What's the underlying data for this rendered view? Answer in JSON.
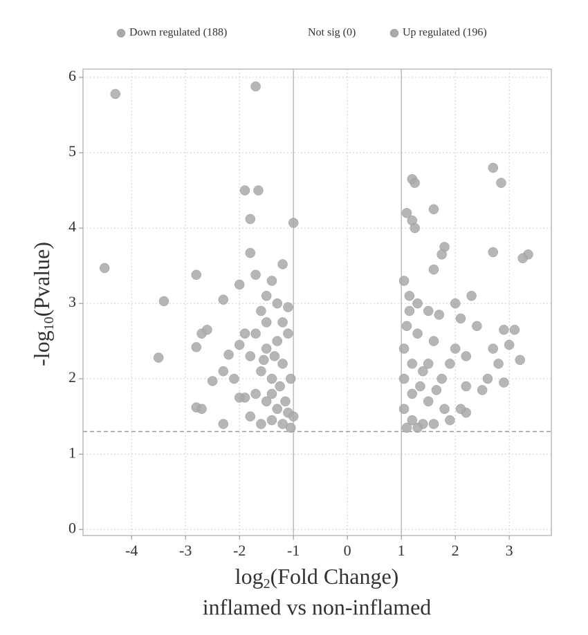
{
  "chart_data": {
    "type": "scatter",
    "series": [
      {
        "name": "Down regulated (188)",
        "color": "#a9a9a9",
        "x": [
          -4.3,
          -4.5,
          -3.4,
          -3.5,
          -2.8,
          -2.8,
          -2.7,
          -2.6,
          -2.5,
          -2.8,
          -2.7,
          -2.3,
          -2.3,
          -2.2,
          -2.3,
          -2.0,
          -1.9,
          -1.65,
          -1.7,
          -1.8,
          -1.8,
          -1.7,
          -1.0,
          -1.2,
          -1.4,
          -1.5,
          -1.3,
          -1.6,
          -1.1,
          -1.9,
          -2.0,
          -1.8,
          -1.5,
          -1.3,
          -1.1,
          -1.6,
          -1.4,
          -1.2,
          -1.05,
          -1.9,
          -2.0,
          -1.7,
          -1.5,
          -1.3,
          -1.1,
          -1.8,
          -1.6,
          -1.4,
          -1.2,
          -1.05,
          -2.1,
          -1.7,
          -1.5,
          -1.2,
          -1.4,
          -1.25,
          -1.15,
          -1.0,
          -1.35,
          -1.55
        ],
        "values": [
          5.78,
          3.47,
          3.03,
          2.28,
          3.38,
          2.42,
          2.6,
          2.65,
          1.97,
          1.62,
          1.6,
          1.4,
          2.1,
          2.32,
          3.05,
          3.25,
          4.5,
          4.5,
          5.88,
          4.12,
          3.67,
          3.38,
          4.07,
          3.52,
          3.3,
          3.1,
          3.0,
          2.9,
          2.95,
          2.6,
          2.45,
          2.3,
          2.4,
          2.5,
          2.6,
          2.1,
          2.0,
          2.2,
          2.0,
          1.75,
          1.75,
          1.8,
          1.7,
          1.6,
          1.55,
          1.5,
          1.4,
          1.45,
          1.4,
          1.35,
          2.0,
          2.6,
          2.75,
          2.75,
          1.8,
          1.9,
          1.7,
          1.5,
          2.3,
          2.25
        ]
      },
      {
        "name": "Not sig (0)",
        "color": "#ffffff",
        "x": [],
        "values": []
      },
      {
        "name": "Up regulated (196)",
        "color": "#a9a9a9",
        "x": [
          1.2,
          1.25,
          1.2,
          1.25,
          1.1,
          1.6,
          2.7,
          2.85,
          2.7,
          3.35,
          3.25,
          1.8,
          1.75,
          1.6,
          1.05,
          1.15,
          1.3,
          1.5,
          1.7,
          2.0,
          2.3,
          2.1,
          2.4,
          2.9,
          3.1,
          2.7,
          3.0,
          2.8,
          3.2,
          2.6,
          2.9,
          2.2,
          2.5,
          1.9,
          1.6,
          1.3,
          1.1,
          1.05,
          1.2,
          1.4,
          1.05,
          1.2,
          1.5,
          1.8,
          2.2,
          1.05,
          1.2,
          1.4,
          1.6,
          1.9,
          2.1,
          1.1,
          1.3,
          1.75,
          2.0,
          2.2,
          1.5,
          1.35,
          1.65,
          1.15
        ],
        "values": [
          4.65,
          4.6,
          4.1,
          4.0,
          4.2,
          4.25,
          4.8,
          4.6,
          3.68,
          3.65,
          3.6,
          3.75,
          3.65,
          3.45,
          3.3,
          3.1,
          3.0,
          2.9,
          2.85,
          3.0,
          3.1,
          2.8,
          2.7,
          2.65,
          2.65,
          2.4,
          2.45,
          2.2,
          2.25,
          2.0,
          1.95,
          1.9,
          1.85,
          2.2,
          2.5,
          2.6,
          2.7,
          2.4,
          2.2,
          2.1,
          2.0,
          1.8,
          1.7,
          1.6,
          1.55,
          1.6,
          1.45,
          1.4,
          1.4,
          1.45,
          1.6,
          1.35,
          1.35,
          2.0,
          2.4,
          2.3,
          2.2,
          1.9,
          1.85,
          2.9
        ]
      }
    ],
    "xlabel": [
      "log",
      "2",
      "(Fold Change)"
    ],
    "xlabel2": "inflamed vs non-inflamed",
    "ylabel": [
      "-log",
      "10",
      "(Pvalue)"
    ],
    "xlim": [
      -4.9,
      3.78
    ],
    "ylim": [
      -0.08,
      6.11
    ],
    "xticks": [
      -4,
      -3,
      -2,
      -1,
      0,
      1,
      2,
      3
    ],
    "yticks": [
      0,
      1,
      2,
      3,
      4,
      5,
      6
    ],
    "thresholds": {
      "x": [
        -1,
        1
      ],
      "y": 1.3
    },
    "grid": true,
    "legend": "top"
  }
}
